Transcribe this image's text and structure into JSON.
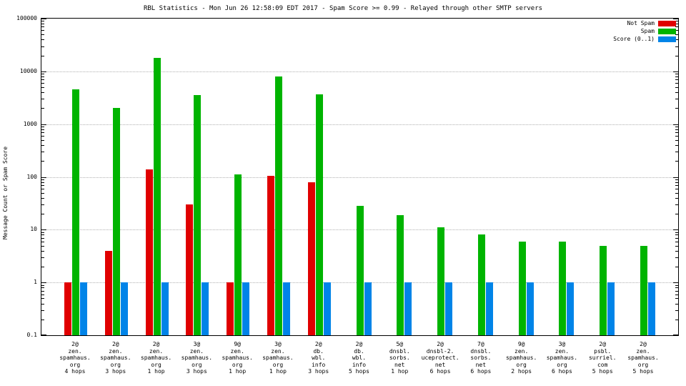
{
  "title": "RBL Statistics - Mon Jun 26 12:58:09 EDT 2017 - Spam Score >= 0.99 - Relayed through other SMTP servers",
  "ylabel": "Message Count or Spam Score",
  "colors": {
    "not_spam": "#e00000",
    "spam": "#00b400",
    "score": "#0084e8"
  },
  "legend": [
    {
      "label": "Not Spam",
      "color": "#e00000"
    },
    {
      "label": "Spam",
      "color": "#00b400"
    },
    {
      "label": "Score (0..1)",
      "color": "#0084e8"
    }
  ],
  "chart_data": {
    "type": "bar",
    "yscale": "log",
    "ylim": [
      0.1,
      100000
    ],
    "yticks": [
      0.1,
      1,
      10,
      100,
      1000,
      10000,
      100000
    ],
    "grid": true,
    "legend_position": "top-right",
    "xlabel": "",
    "ylabel": "Message Count or Spam Score",
    "categories": [
      [
        "2@",
        "zen.",
        "spamhaus.",
        "org",
        "4 hops"
      ],
      [
        "2@",
        "zen.",
        "spamhaus.",
        "org",
        "3 hops"
      ],
      [
        "2@",
        "zen.",
        "spamhaus.",
        "org",
        "1 hop"
      ],
      [
        "3@",
        "zen.",
        "spamhaus.",
        "org",
        "3 hops"
      ],
      [
        "9@",
        "zen.",
        "spamhaus.",
        "org",
        "1 hop"
      ],
      [
        "3@",
        "zen.",
        "spamhaus.",
        "org",
        "1 hop"
      ],
      [
        "2@",
        "db.",
        "wbl.",
        "info",
        "3 hops"
      ],
      [
        "2@",
        "db.",
        "wbl.",
        "info",
        "5 hops"
      ],
      [
        "5@",
        "dnsbl.",
        "sorbs.",
        "net",
        "1 hop"
      ],
      [
        "2@",
        "dnsbl-2.",
        "uceprotect.",
        "net",
        "6 hops"
      ],
      [
        "7@",
        "dnsbl.",
        "sorbs.",
        "net",
        "6 hops"
      ],
      [
        "9@",
        "zen.",
        "spamhaus.",
        "org",
        "2 hops"
      ],
      [
        "3@",
        "zen.",
        "spamhaus.",
        "org",
        "6 hops"
      ],
      [
        "2@",
        "psbl.",
        "surriel.",
        "com",
        "5 hops"
      ],
      [
        "2@",
        "zen.",
        "spamhaus.",
        "org",
        "5 hops"
      ]
    ],
    "series": [
      {
        "name": "Not Spam",
        "color": "#e00000",
        "values": [
          1,
          4,
          140,
          30,
          1,
          105,
          80,
          null,
          null,
          null,
          null,
          null,
          null,
          null,
          null
        ]
      },
      {
        "name": "Spam",
        "color": "#00b400",
        "values": [
          4500,
          2000,
          18000,
          3500,
          110,
          8000,
          3700,
          28,
          19,
          11,
          8,
          6,
          6,
          5,
          5
        ]
      },
      {
        "name": "Score (0..1)",
        "color": "#0084e8",
        "values": [
          1,
          1,
          1,
          1,
          1,
          1,
          1,
          1,
          1,
          1,
          1,
          1,
          1,
          1,
          1
        ]
      }
    ]
  }
}
